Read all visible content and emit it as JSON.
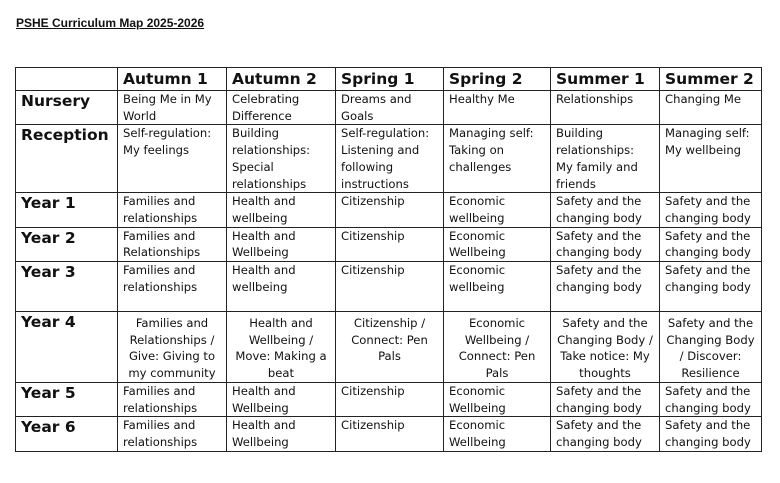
{
  "title": "PSHE Curriculum Map 2025-2026",
  "columns": [
    "",
    "Autumn 1",
    "Autumn 2",
    "Spring 1",
    "Spring 2",
    "Summer 1",
    "Summer 2"
  ],
  "rows": [
    {
      "label": "Nursery",
      "cells": [
        "Being Me in My World",
        "Celebrating Difference",
        "Dreams and Goals",
        "Healthy Me",
        "Relationships",
        "Changing Me"
      ]
    },
    {
      "label": "Reception",
      "cells": [
        "Self-regulation: My feelings",
        "Building relationships: Special relationships",
        "Self-regulation: Listening and following instructions",
        "Managing self: Taking on challenges",
        "Building relationships: My family and friends",
        "Managing self: My wellbeing"
      ]
    },
    {
      "label": "Year 1",
      "cells": [
        "Families and relationships",
        "Health and wellbeing",
        "Citizenship",
        "Economic wellbeing",
        "Safety and the changing body",
        "Safety and the changing body"
      ]
    },
    {
      "label": "Year 2",
      "cells": [
        "Families and Relationships",
        "Health and Wellbeing",
        "Citizenship",
        "Economic Wellbeing",
        "Safety and the changing body",
        "Safety and the changing body"
      ]
    },
    {
      "label": "Year 3",
      "cells": [
        "Families and relationships",
        "Health and wellbeing",
        "Citizenship",
        "Economic wellbeing",
        "Safety and the changing body",
        "Safety and the changing body"
      ]
    },
    {
      "label": "Year 4",
      "cells": [
        "Families and Relationships / Give: Giving to my community",
        "Health and Wellbeing / Move: Making a beat",
        "Citizenship / Connect: Pen Pals",
        "Economic Wellbeing / Connect: Pen Pals",
        "Safety and the Changing Body / Take notice: My thoughts",
        "Safety and the Changing Body / Discover: Resilience"
      ]
    },
    {
      "label": "Year 5",
      "cells": [
        "Families and relationships",
        "Health and Wellbeing",
        "Citizenship",
        "Economic Wellbeing",
        "Safety and the changing body",
        "Safety and the changing body"
      ]
    },
    {
      "label": "Year 6",
      "cells": [
        "Families and relationships",
        "Health and Wellbeing",
        "Citizenship",
        "Economic Wellbeing",
        "Safety and the changing body",
        "Safety and the changing body"
      ]
    }
  ]
}
